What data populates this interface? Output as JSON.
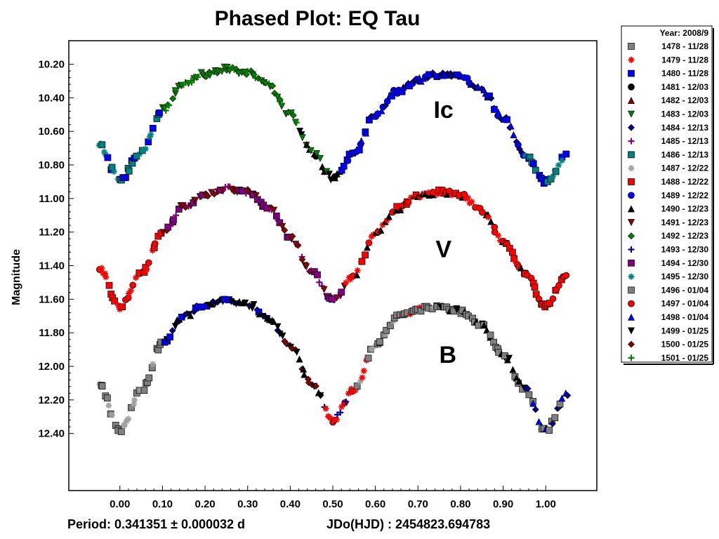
{
  "chart_data": {
    "type": "scatter",
    "title": "Phased Plot: EQ Tau",
    "ylabel": "Magnitude",
    "xlabel": "",
    "xlim": [
      -0.12,
      1.12
    ],
    "ylim": [
      10.06,
      12.74
    ],
    "y_inverted": true,
    "grid": false,
    "legend_placement": "right",
    "x_ticks": [
      "0.00",
      "0.10",
      "0.20",
      "0.30",
      "0.40",
      "0.50",
      "0.60",
      "0.70",
      "0.80",
      "0.90",
      "1.00"
    ],
    "y_ticks": [
      "10.20",
      "10.40",
      "10.60",
      "10.80",
      "11.00",
      "11.20",
      "11.40",
      "11.60",
      "11.80",
      "12.00",
      "12.20",
      "12.40"
    ],
    "band_labels": [
      {
        "text": "Ic",
        "x": 0.76,
        "y": 10.52
      },
      {
        "text": "V",
        "x": 0.76,
        "y": 11.35
      },
      {
        "text": "B",
        "x": 0.77,
        "y": 11.98
      }
    ],
    "bands": [
      {
        "name": "Ic",
        "phases": [
          -0.05,
          0.0,
          0.05,
          0.1,
          0.15,
          0.2,
          0.25,
          0.3,
          0.35,
          0.4,
          0.45,
          0.5,
          0.55,
          0.6,
          0.65,
          0.7,
          0.75,
          0.8,
          0.85,
          0.9,
          0.95,
          1.0,
          1.05
        ],
        "mags": [
          10.68,
          10.89,
          10.72,
          10.47,
          10.32,
          10.26,
          10.23,
          10.25,
          10.33,
          10.5,
          10.72,
          10.88,
          10.73,
          10.5,
          10.36,
          10.29,
          10.26,
          10.27,
          10.35,
          10.52,
          10.73,
          10.9,
          10.74
        ]
      },
      {
        "name": "V",
        "phases": [
          -0.05,
          0.0,
          0.05,
          0.1,
          0.15,
          0.2,
          0.25,
          0.3,
          0.35,
          0.4,
          0.45,
          0.5,
          0.55,
          0.6,
          0.65,
          0.7,
          0.75,
          0.8,
          0.85,
          0.9,
          0.95,
          1.0,
          1.05
        ],
        "mags": [
          11.41,
          11.65,
          11.45,
          11.2,
          11.05,
          10.98,
          10.94,
          10.96,
          11.05,
          11.23,
          11.44,
          11.61,
          11.46,
          11.2,
          11.06,
          10.99,
          10.96,
          10.98,
          11.07,
          11.25,
          11.44,
          11.64,
          11.46
        ]
      },
      {
        "name": "B",
        "phases": [
          -0.05,
          0.0,
          0.05,
          0.1,
          0.15,
          0.2,
          0.25,
          0.3,
          0.35,
          0.4,
          0.45,
          0.5,
          0.55,
          0.6,
          0.65,
          0.7,
          0.75,
          0.8,
          0.85,
          0.9,
          0.95,
          1.0,
          1.05
        ],
        "mags": [
          12.1,
          12.38,
          12.15,
          11.86,
          11.7,
          11.63,
          11.6,
          11.63,
          11.71,
          11.88,
          12.1,
          12.32,
          12.14,
          11.87,
          11.71,
          11.66,
          11.64,
          11.67,
          11.76,
          11.93,
          12.13,
          12.38,
          12.17
        ]
      }
    ],
    "legend": {
      "header": "Year: 2008/9",
      "entries": [
        {
          "label": "1478 - 11/28",
          "marker": "square",
          "color": "#808080"
        },
        {
          "label": "1479 - 11/28",
          "marker": "asterisk",
          "color": "#ff0000"
        },
        {
          "label": "1480 - 11/28",
          "marker": "square",
          "color": "#0000ff"
        },
        {
          "label": "1481 - 12/03",
          "marker": "circle",
          "color": "#000000"
        },
        {
          "label": "1482 - 12/03",
          "marker": "triangle-up",
          "color": "#8b0000"
        },
        {
          "label": "1483 - 12/03",
          "marker": "triangle-down",
          "color": "#008000"
        },
        {
          "label": "1484 - 12/13",
          "marker": "diamond",
          "color": "#00008b"
        },
        {
          "label": "1485 - 12/13",
          "marker": "plus",
          "color": "#800080"
        },
        {
          "label": "1486 - 12/13",
          "marker": "square",
          "color": "#008080"
        },
        {
          "label": "1487 - 12/22",
          "marker": "asterisk",
          "color": "#a0a0a0"
        },
        {
          "label": "1488 - 12/22",
          "marker": "square",
          "color": "#ff0000"
        },
        {
          "label": "1489 - 12/22",
          "marker": "circle",
          "color": "#0000ff"
        },
        {
          "label": "1490 - 12/23",
          "marker": "triangle-up",
          "color": "#000000"
        },
        {
          "label": "1491 - 12/23",
          "marker": "triangle-down",
          "color": "#8b0000"
        },
        {
          "label": "1492 - 12/23",
          "marker": "diamond",
          "color": "#008000"
        },
        {
          "label": "1493 - 12/30",
          "marker": "plus",
          "color": "#00008b"
        },
        {
          "label": "1494 - 12/30",
          "marker": "square",
          "color": "#800080"
        },
        {
          "label": "1495 - 12/30",
          "marker": "asterisk",
          "color": "#008080"
        },
        {
          "label": "1496 - 01/04",
          "marker": "square",
          "color": "#808080"
        },
        {
          "label": "1497 - 01/04",
          "marker": "circle",
          "color": "#ff0000"
        },
        {
          "label": "1498 - 01/04",
          "marker": "triangle-up",
          "color": "#0000ff"
        },
        {
          "label": "1499 - 01/25",
          "marker": "triangle-down",
          "color": "#000000"
        },
        {
          "label": "1500 - 01/25",
          "marker": "diamond",
          "color": "#8b0000"
        },
        {
          "label": "1501 - 01/25",
          "marker": "plus",
          "color": "#008000"
        }
      ]
    },
    "footer": {
      "period": "Period: 0.341351 ± 0.000032 d",
      "epoch": "JDo(HJD) : 2454823.694783"
    }
  }
}
